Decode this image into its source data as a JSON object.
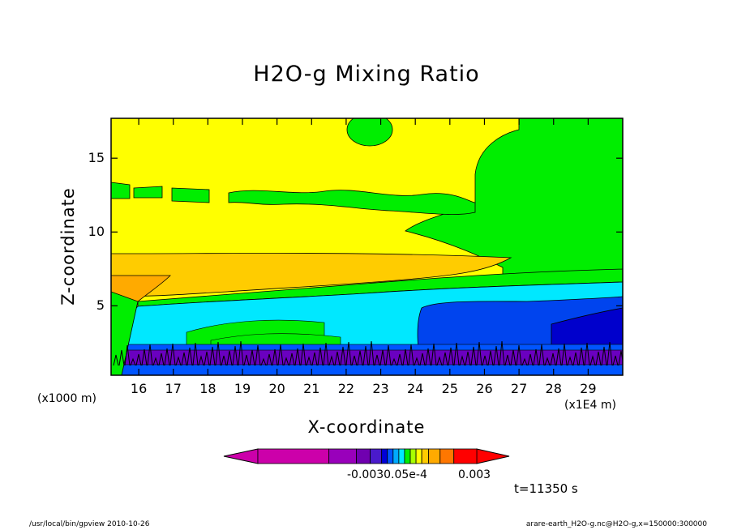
{
  "chart_data": {
    "type": "heatmap",
    "title": "H2O-g Mixing Ratio",
    "xlabel": "X-coordinate",
    "ylabel": "Z-coordinate",
    "x_unit_note": "(x1E4 m)",
    "y_unit_note": "(x1000 m)",
    "x_ticks": [
      16,
      17,
      18,
      19,
      20,
      21,
      22,
      23,
      24,
      25,
      26,
      27,
      28,
      29
    ],
    "y_ticks": [
      5,
      10,
      15
    ],
    "xlim": [
      15.2,
      30.0
    ],
    "ylim": [
      0.3,
      17.7
    ],
    "colorbar": {
      "tick_labels": [
        "-0.003",
        "0.0",
        "5e-4",
        "0.003"
      ],
      "overlap_label": "-0.0030.05e-4",
      "colors": [
        "#cc00aa",
        "#9900bb",
        "#7000b0",
        "#4a1acc",
        "#0000d8",
        "#0055ff",
        "#00aaff",
        "#00e8ff",
        "#00ee00",
        "#a8ff00",
        "#ffff00",
        "#ffcc00",
        "#ffaa00",
        "#ff7700",
        "#ff0000"
      ]
    },
    "regions": [
      {
        "name": "yellow",
        "color": "#ffff00"
      },
      {
        "name": "green",
        "color": "#00ee00"
      },
      {
        "name": "orange",
        "color": "#ffcc00"
      },
      {
        "name": "dark-orange",
        "color": "#ffaa00"
      },
      {
        "name": "cyan",
        "color": "#00e8ff"
      },
      {
        "name": "blue",
        "color": "#0044ee"
      },
      {
        "name": "dark-blue",
        "color": "#0000cc"
      },
      {
        "name": "purple",
        "color": "#6a00c0"
      }
    ]
  },
  "annotations": {
    "time": "t=11350 s",
    "footer_left": "/usr/local/bin/gpview  2010-10-26",
    "footer_right": "arare-earth_H2O-g.nc@H2O-g,x=150000:300000"
  }
}
